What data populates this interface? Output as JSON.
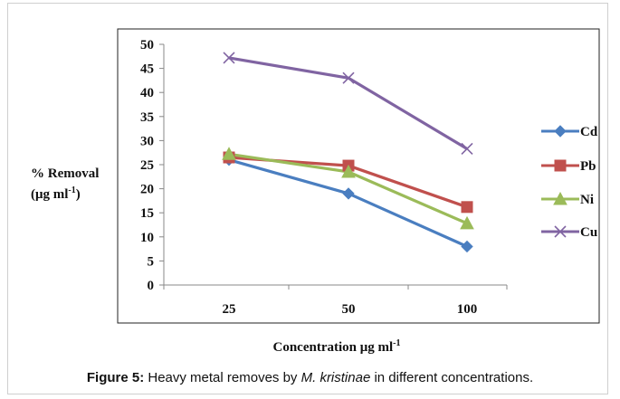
{
  "chart_data": {
    "type": "line",
    "categories": [
      "25",
      "50",
      "100"
    ],
    "ylim": [
      0,
      50
    ],
    "yticks": [
      "0",
      "5",
      "10",
      "15",
      "20",
      "25",
      "30",
      "35",
      "40",
      "45",
      "50"
    ],
    "ylabel_line1": "% Removal",
    "ylabel_line2_prefix": "(μg ml",
    "ylabel_line2_sup": "-1",
    "ylabel_line2_suffix": ")",
    "xlabel_prefix": "Concentration μg ml",
    "xlabel_sup": "-1",
    "legend_position": "right",
    "grid": false,
    "series": [
      {
        "name": "Cd",
        "values": [
          26.0,
          19.0,
          8.0
        ],
        "color": "#4a7ec0",
        "marker": "diamond"
      },
      {
        "name": "Pb",
        "values": [
          26.5,
          24.8,
          16.2
        ],
        "color": "#c0504d",
        "marker": "square"
      },
      {
        "name": "Ni",
        "values": [
          27.2,
          23.5,
          12.8
        ],
        "color": "#9bbb59",
        "marker": "triangle"
      },
      {
        "name": "Cu",
        "values": [
          47.2,
          43.0,
          28.3
        ],
        "color": "#8064a2",
        "marker": "cross"
      }
    ]
  },
  "caption": {
    "label": "Figure 5:",
    "text_before": " Heavy metal removes by ",
    "species": "M. kristinae",
    "text_after": " in different concentrations."
  }
}
